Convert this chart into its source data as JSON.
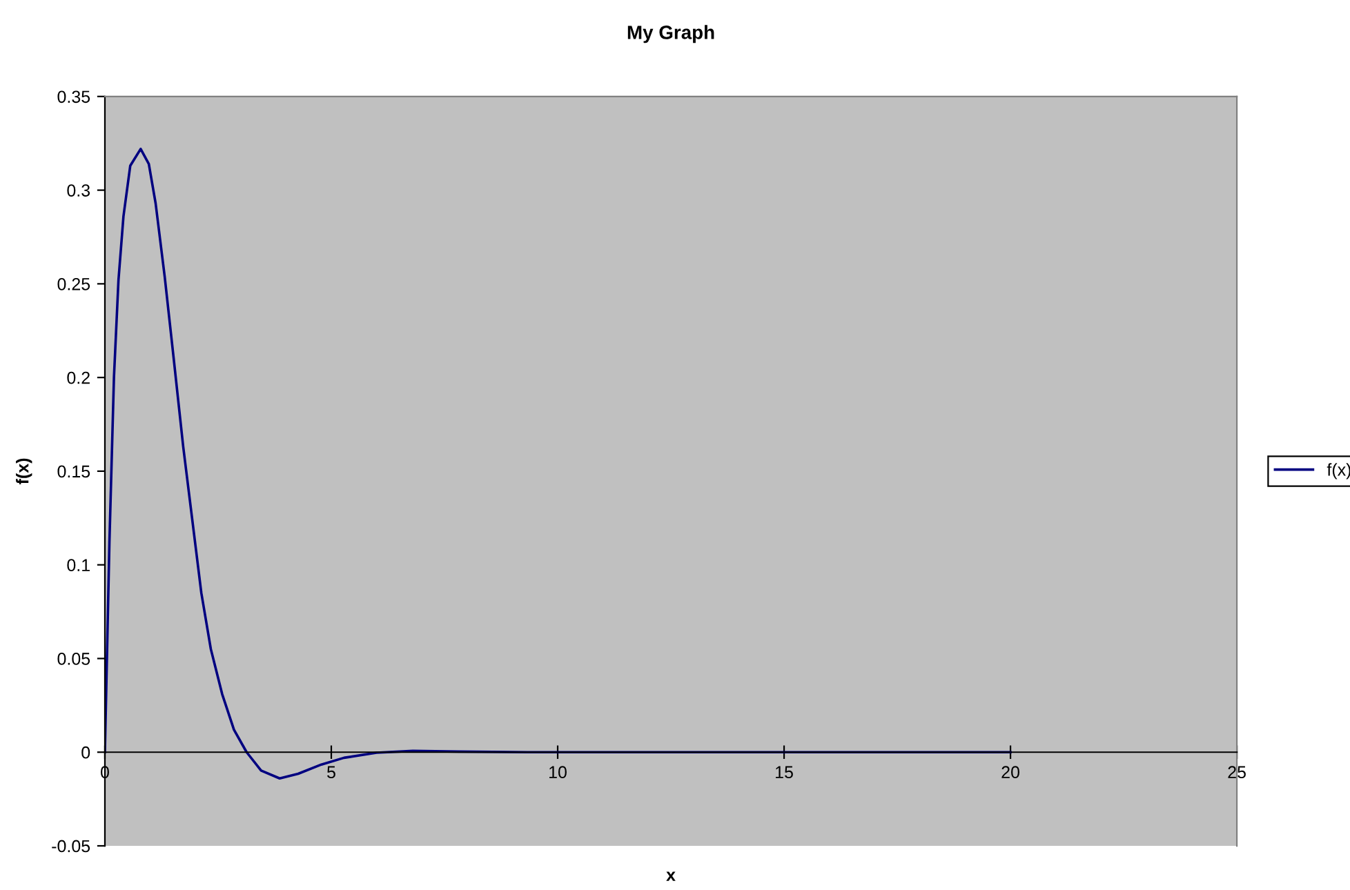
{
  "chart_data": {
    "type": "line",
    "title": "My Graph",
    "xlabel": "x",
    "ylabel": "f(x)",
    "xlim": [
      0,
      25
    ],
    "xticks": [
      0,
      5,
      10,
      15,
      20,
      25
    ],
    "ylim": [
      -0.05,
      0.35
    ],
    "yticks": [
      -0.05,
      0,
      0.05,
      0.1,
      0.15,
      0.2,
      0.25,
      0.3,
      0.35
    ],
    "grid": false,
    "legend": "right",
    "marker": "none",
    "line_style": "solid",
    "series": [
      {
        "name": "f(x)",
        "color": "#000080",
        "x": [
          0,
          0.1,
          0.2,
          0.3,
          0.41,
          0.56,
          0.79,
          0.97,
          1.12,
          1.32,
          1.52,
          1.73,
          1.93,
          2.13,
          2.34,
          2.59,
          2.85,
          3.13,
          3.45,
          3.86,
          4.27,
          4.78,
          5.28,
          6.0,
          6.8,
          7.8,
          9.4,
          20
        ],
        "values": [
          0,
          0.112,
          0.2,
          0.252,
          0.286,
          0.313,
          0.322,
          0.314,
          0.293,
          0.254,
          0.21,
          0.163,
          0.124,
          0.085,
          0.055,
          0.031,
          0.012,
          0,
          -0.0098,
          -0.014,
          -0.0115,
          -0.0066,
          -0.003,
          -0.0003,
          0.0007,
          0.0003,
          0,
          0
        ]
      }
    ]
  }
}
